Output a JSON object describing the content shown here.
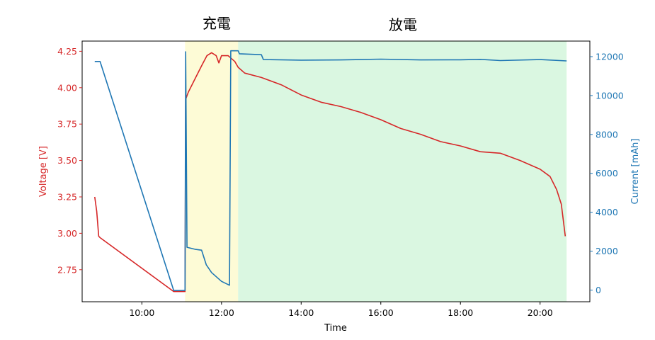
{
  "chart_data": {
    "type": "line",
    "title": "",
    "xlabel": "Time",
    "ylabel_left": "Voltage [V]",
    "ylabel_right": "Current [mAh]",
    "x_ticks": [
      "10:00",
      "12:00",
      "14:00",
      "16:00",
      "18:00",
      "20:00"
    ],
    "xlim": [
      "08:30",
      "21:15"
    ],
    "ylim_left": [
      2.53,
      4.32
    ],
    "ylim_right": [
      -600,
      12800
    ],
    "y_ticks_left": [
      "2.75",
      "3.00",
      "3.25",
      "3.50",
      "3.75",
      "4.00",
      "4.25"
    ],
    "y_ticks_right": [
      "0",
      "2000",
      "4000",
      "6000",
      "8000",
      "10000",
      "12000"
    ],
    "grid": false,
    "colors": {
      "voltage": "#d62728",
      "current": "#1f77b4",
      "charge_region": "#fdfbd6",
      "discharge_region": "#daf7e1"
    },
    "regions": [
      {
        "label": "充電",
        "x_start": "11:05",
        "x_end": "12:25"
      },
      {
        "label": "放電",
        "x_start": "12:25",
        "x_end": "20:40"
      }
    ],
    "series": [
      {
        "axis": "left",
        "points": [
          [
            "08:49",
            3.25
          ],
          [
            "08:52",
            3.15
          ],
          [
            "08:55",
            2.98
          ],
          [
            "08:57",
            2.97
          ],
          [
            "10:48",
            2.6
          ],
          [
            "11:05",
            2.6
          ],
          [
            "11:06",
            3.92
          ],
          [
            "11:10",
            3.97
          ],
          [
            "11:20",
            4.06
          ],
          [
            "11:30",
            4.15
          ],
          [
            "11:38",
            4.22
          ],
          [
            "11:45",
            4.24
          ],
          [
            "11:52",
            4.22
          ],
          [
            "11:56",
            4.17
          ],
          [
            "12:00",
            4.22
          ],
          [
            "12:10",
            4.22
          ],
          [
            "12:15",
            4.2
          ],
          [
            "12:20",
            4.18
          ],
          [
            "12:25",
            4.14
          ],
          [
            "12:35",
            4.1
          ],
          [
            "13:00",
            4.07
          ],
          [
            "13:30",
            4.02
          ],
          [
            "14:00",
            3.95
          ],
          [
            "14:30",
            3.9
          ],
          [
            "15:00",
            3.87
          ],
          [
            "15:30",
            3.83
          ],
          [
            "16:00",
            3.78
          ],
          [
            "16:30",
            3.72
          ],
          [
            "17:00",
            3.68
          ],
          [
            "17:30",
            3.63
          ],
          [
            "18:00",
            3.6
          ],
          [
            "18:30",
            3.56
          ],
          [
            "19:00",
            3.55
          ],
          [
            "19:30",
            3.5
          ],
          [
            "20:00",
            3.44
          ],
          [
            "20:15",
            3.39
          ],
          [
            "20:25",
            3.3
          ],
          [
            "20:32",
            3.2
          ],
          [
            "20:38",
            2.98
          ]
        ]
      },
      {
        "axis": "right",
        "points": [
          [
            "08:49",
            11750
          ],
          [
            "08:57",
            11750
          ],
          [
            "10:48",
            -20
          ],
          [
            "11:05",
            -20
          ],
          [
            "11:06",
            12250
          ],
          [
            "11:08",
            2200
          ],
          [
            "11:20",
            2100
          ],
          [
            "11:30",
            2050
          ],
          [
            "11:37",
            1300
          ],
          [
            "11:45",
            900
          ],
          [
            "12:00",
            450
          ],
          [
            "12:12",
            250
          ],
          [
            "12:14",
            12300
          ],
          [
            "12:25",
            12300
          ],
          [
            "12:27",
            12150
          ],
          [
            "13:00",
            12100
          ],
          [
            "13:03",
            11850
          ],
          [
            "14:00",
            11820
          ],
          [
            "15:00",
            11830
          ],
          [
            "16:00",
            11870
          ],
          [
            "17:00",
            11830
          ],
          [
            "18:00",
            11840
          ],
          [
            "18:30",
            11860
          ],
          [
            "19:00",
            11800
          ],
          [
            "20:00",
            11850
          ],
          [
            "20:40",
            11780
          ]
        ]
      }
    ]
  }
}
